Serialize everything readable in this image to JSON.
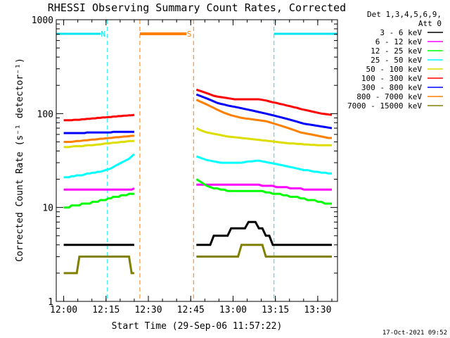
{
  "chart_data": {
    "type": "line",
    "title": "RHESSI Observing Summary Count Rates, Corrected",
    "xlabel": "Start Time (29-Sep-06 11:57:22)",
    "ylabel": "Corrected Count Rate (s⁻¹ detector⁻¹)",
    "y_scale": "log",
    "ylim": [
      1,
      1000
    ],
    "xlim": [
      "11:57:22",
      "13:37:00"
    ],
    "x_ticks": [
      "12:00",
      "12:15",
      "12:30",
      "12:45",
      "13:00",
      "13:15",
      "13:30"
    ],
    "y_ticks": [
      "1",
      "10",
      "100",
      "1000"
    ],
    "grid": false,
    "legend_position": "right",
    "legend_header": [
      "Det 1,3,4,5,6,9,",
      "Att 0"
    ],
    "footer_date": "17-Oct-2021 09:52",
    "annotations": [
      {
        "text": "N",
        "color": "#00e5ee",
        "meaning": "night",
        "x_start": "11:57:22",
        "x_end": "12:15:30"
      },
      {
        "text": "S",
        "color": "#ff8000",
        "meaning": "SAA",
        "x_start": "12:27:00",
        "x_end": "12:46:00"
      },
      {
        "text": "",
        "color": "#00e5ee",
        "meaning": "night",
        "x_start": "13:14:30",
        "x_end": "13:37:00"
      }
    ],
    "gap": {
      "from": "12:25",
      "to": "12:46"
    },
    "series": [
      {
        "name": "3 - 6 keV",
        "color": "#000000",
        "values_before_gap": [
          4,
          4,
          4,
          4,
          4,
          4,
          4,
          4,
          4,
          4,
          4,
          4,
          4,
          4,
          4,
          4,
          4,
          4,
          4,
          4,
          4,
          4,
          4,
          4,
          4,
          4,
          4,
          4
        ],
        "values_after_gap": [
          4,
          4,
          4,
          4,
          4,
          5,
          5,
          5,
          5,
          5,
          6,
          6,
          6,
          6,
          6,
          7,
          7,
          7,
          6,
          6,
          5,
          5,
          4,
          4,
          4,
          4,
          4,
          4,
          4,
          4,
          4,
          4,
          4,
          4,
          4,
          4,
          4,
          4,
          4,
          4
        ]
      },
      {
        "name": "6 - 12 keV",
        "color": "#ff00ff",
        "values_before_gap": [
          15.5,
          15.5,
          15.5,
          15.5,
          15.5,
          15.5,
          15.5,
          15.5,
          15.5,
          15.5,
          15.5,
          15.5,
          15.5,
          15.5,
          15.5,
          15.5,
          15.5,
          15.5,
          15.5,
          15.5,
          15.5,
          15.5,
          15.5,
          15.5,
          15.5,
          15.5,
          15.5,
          16
        ],
        "values_after_gap": [
          17.5,
          17.5,
          17.5,
          17.5,
          17.5,
          17.5,
          17.5,
          17.5,
          17.5,
          17.5,
          17.5,
          17.5,
          17.5,
          17.5,
          17.5,
          17.5,
          17.5,
          17.5,
          17.5,
          17,
          17,
          17,
          17,
          16.5,
          16.5,
          16.5,
          16.5,
          16,
          16,
          16,
          16,
          15.5,
          15.5,
          15.5,
          15.5,
          15.5,
          15.5,
          15.5,
          15.5,
          15.5
        ]
      },
      {
        "name": "12 - 25 keV",
        "color": "#00ff00",
        "values_before_gap": [
          10,
          10,
          10,
          10.5,
          10.5,
          10.5,
          10.5,
          11,
          11,
          11,
          11,
          11.5,
          11.5,
          11.5,
          12,
          12,
          12,
          12.5,
          12.5,
          13,
          13,
          13,
          13.5,
          13.5,
          13.5,
          14,
          14,
          14
        ],
        "values_after_gap": [
          20,
          19,
          18,
          17,
          16.5,
          16,
          16,
          15.5,
          15.5,
          15,
          15,
          15,
          15,
          15,
          15,
          15,
          15,
          15,
          15,
          15,
          14.5,
          14.5,
          14,
          14,
          14,
          13.5,
          13.5,
          13,
          13,
          13,
          12.5,
          12.5,
          12,
          12,
          12,
          11.5,
          11.5,
          11,
          11,
          11
        ]
      },
      {
        "name": "25 - 50 keV",
        "color": "#00ffff",
        "values_before_gap": [
          21,
          21,
          21,
          21.5,
          21.5,
          22,
          22,
          22,
          22.5,
          23,
          23,
          23.5,
          23.5,
          24,
          24,
          24.5,
          25,
          25.5,
          26,
          27,
          28,
          29,
          30,
          31,
          32,
          33,
          35,
          37
        ],
        "values_after_gap": [
          35,
          34,
          33,
          32,
          31.5,
          31,
          30.5,
          30,
          30,
          30,
          30,
          30,
          30,
          30,
          30.5,
          31,
          31,
          31.5,
          31.5,
          31,
          30.5,
          30,
          29.5,
          29,
          28.5,
          28,
          27.5,
          27,
          26.5,
          26,
          25.5,
          25,
          25,
          24.5,
          24,
          24,
          23.5,
          23.5,
          23,
          23
        ]
      },
      {
        "name": "50 - 100 keV",
        "color": "#dddd00",
        "values_before_gap": [
          44,
          44,
          44,
          44.5,
          45,
          45,
          45,
          45,
          45.5,
          46,
          46,
          46,
          46.5,
          47,
          47,
          47.5,
          48,
          48,
          48.5,
          49,
          49,
          49.5,
          50,
          50,
          50.5,
          51,
          51,
          51
        ],
        "values_after_gap": [
          70,
          67,
          65,
          63,
          62,
          61,
          60,
          59,
          58,
          57,
          56.5,
          56,
          55.5,
          55,
          54.5,
          54,
          53.5,
          53,
          52.5,
          52,
          51.5,
          51,
          50.5,
          50,
          49.5,
          49,
          48.5,
          48,
          48,
          47.5,
          47.5,
          47,
          47,
          46.5,
          46.5,
          46,
          46,
          46,
          46,
          46
        ]
      },
      {
        "name": "100 - 300 keV",
        "color": "#ff0000",
        "values_before_gap": [
          85,
          85,
          85,
          85,
          86,
          86,
          86,
          87,
          87,
          88,
          88,
          89,
          89,
          90,
          90,
          91,
          91,
          92,
          92,
          93,
          93,
          94,
          94,
          95,
          95,
          96,
          96,
          97
        ],
        "values_after_gap": [
          180,
          175,
          170,
          165,
          160,
          155,
          152,
          150,
          148,
          146,
          144,
          142,
          142,
          142,
          142,
          142,
          142,
          142,
          142,
          140,
          138,
          135,
          132,
          130,
          127,
          125,
          122,
          120,
          117,
          115,
          112,
          110,
          108,
          106,
          104,
          102,
          100,
          99,
          98,
          97
        ]
      },
      {
        "name": "300 - 800 keV",
        "color": "#0000ff",
        "values_before_gap": [
          62,
          62,
          62,
          62,
          62,
          62,
          62,
          62,
          62,
          63,
          63,
          63,
          63,
          63,
          63,
          63,
          63,
          63,
          63,
          64,
          64,
          64,
          64,
          64,
          64,
          64,
          64,
          64
        ],
        "values_after_gap": [
          160,
          155,
          150,
          145,
          140,
          135,
          130,
          127,
          125,
          122,
          120,
          118,
          116,
          114,
          112,
          110,
          108,
          106,
          104,
          102,
          100,
          98,
          96,
          94,
          92,
          90,
          88,
          86,
          84,
          82,
          80,
          78,
          77,
          76,
          75,
          74,
          73,
          72,
          71,
          70
        ]
      },
      {
        "name": "800 - 7000 keV",
        "color": "#ff8000",
        "values_before_gap": [
          50,
          50,
          50,
          50,
          50.5,
          51,
          51,
          51.5,
          52,
          52,
          52.5,
          53,
          53,
          53.5,
          54,
          54,
          54.5,
          55,
          55,
          55.5,
          56,
          56,
          56.5,
          57,
          57,
          57.5,
          58,
          58
        ],
        "values_after_gap": [
          140,
          135,
          130,
          125,
          120,
          115,
          110,
          106,
          102,
          99,
          96,
          94,
          92,
          90,
          89,
          88,
          87,
          86,
          85,
          84,
          83,
          81,
          79,
          77,
          75,
          73,
          71,
          69,
          67,
          65,
          63,
          62,
          61,
          60,
          59,
          58,
          57,
          56,
          55,
          55
        ]
      },
      {
        "name": "7000 - 15000 keV",
        "color": "#808000",
        "values_before_gap": [
          2,
          2,
          2,
          2,
          2,
          2,
          3,
          3,
          3,
          3,
          3,
          3,
          3,
          3,
          3,
          3,
          3,
          3,
          3,
          3,
          3,
          3,
          3,
          3,
          3,
          3,
          2,
          2
        ],
        "values_after_gap": [
          3,
          3,
          3,
          3,
          3,
          3,
          3,
          3,
          3,
          3,
          3,
          3,
          3,
          4,
          4,
          4,
          4,
          4,
          4,
          4,
          3,
          3,
          3,
          3,
          3,
          3,
          3,
          3,
          3,
          3,
          3,
          3,
          3,
          3,
          3,
          3,
          3,
          3,
          3,
          3
        ]
      }
    ]
  }
}
